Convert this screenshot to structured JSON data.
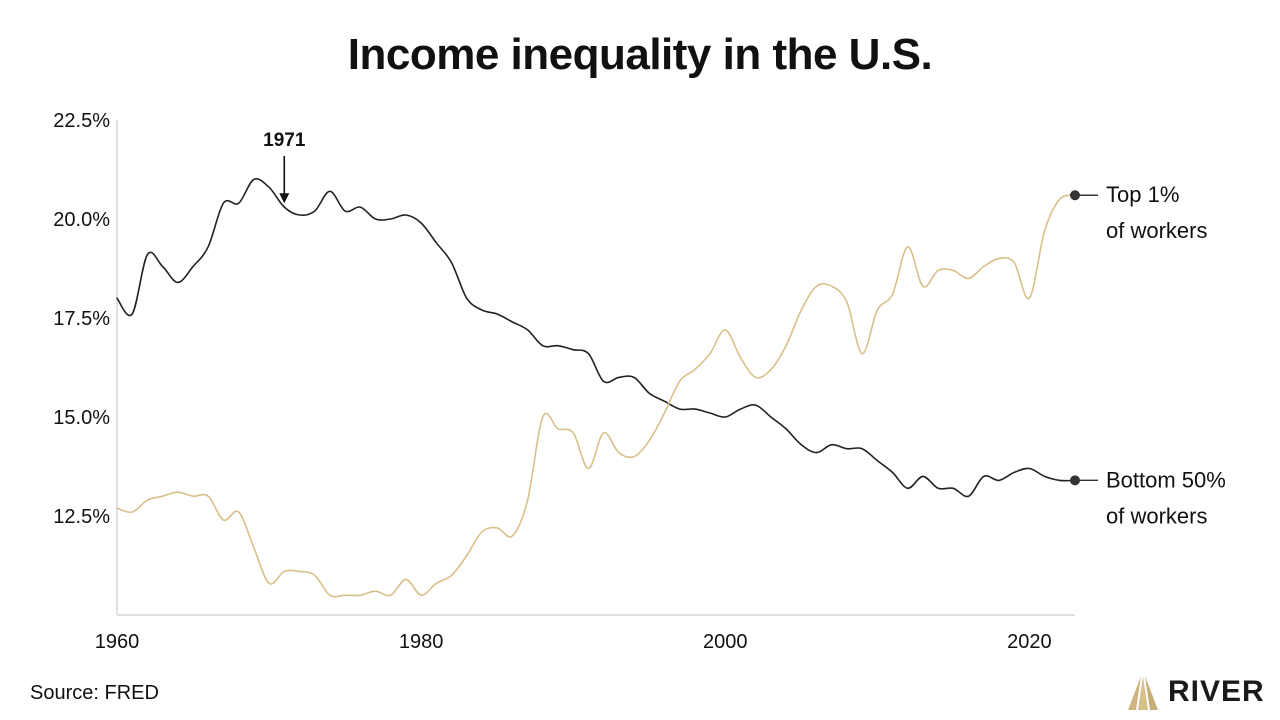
{
  "chart_data": {
    "type": "line",
    "title": "Income inequality in the U.S.",
    "xlim": [
      1960,
      2023
    ],
    "ylim": [
      10.0,
      22.5
    ],
    "x_ticks": [
      1960,
      1980,
      2000,
      2020
    ],
    "x_tick_labels": [
      "1960",
      "1980",
      "2000",
      "2020"
    ],
    "y_ticks": [
      12.5,
      15.0,
      17.5,
      20.0,
      22.5
    ],
    "y_tick_labels": [
      "12.5%",
      "15.0%",
      "17.5%",
      "20.0%",
      "22.5%"
    ],
    "grid": false,
    "series": [
      {
        "name": "Bottom 50% of workers",
        "label_lines": [
          "Bottom 50%",
          "of workers"
        ],
        "color": "#222222",
        "points": [
          [
            1960,
            18.0
          ],
          [
            1961,
            17.6
          ],
          [
            1962,
            19.1
          ],
          [
            1963,
            18.8
          ],
          [
            1964,
            18.4
          ],
          [
            1965,
            18.8
          ],
          [
            1966,
            19.3
          ],
          [
            1967,
            20.4
          ],
          [
            1968,
            20.4
          ],
          [
            1969,
            21.0
          ],
          [
            1970,
            20.8
          ],
          [
            1971,
            20.3
          ],
          [
            1972,
            20.1
          ],
          [
            1973,
            20.2
          ],
          [
            1974,
            20.7
          ],
          [
            1975,
            20.2
          ],
          [
            1976,
            20.3
          ],
          [
            1977,
            20.0
          ],
          [
            1978,
            20.0
          ],
          [
            1979,
            20.1
          ],
          [
            1980,
            19.9
          ],
          [
            1981,
            19.4
          ],
          [
            1982,
            18.9
          ],
          [
            1983,
            18.0
          ],
          [
            1984,
            17.7
          ],
          [
            1985,
            17.6
          ],
          [
            1986,
            17.4
          ],
          [
            1987,
            17.2
          ],
          [
            1988,
            16.8
          ],
          [
            1989,
            16.8
          ],
          [
            1990,
            16.7
          ],
          [
            1991,
            16.6
          ],
          [
            1992,
            15.9
          ],
          [
            1993,
            16.0
          ],
          [
            1994,
            16.0
          ],
          [
            1995,
            15.6
          ],
          [
            1996,
            15.4
          ],
          [
            1997,
            15.2
          ],
          [
            1998,
            15.2
          ],
          [
            1999,
            15.1
          ],
          [
            2000,
            15.0
          ],
          [
            2001,
            15.2
          ],
          [
            2002,
            15.3
          ],
          [
            2003,
            15.0
          ],
          [
            2004,
            14.7
          ],
          [
            2005,
            14.3
          ],
          [
            2006,
            14.1
          ],
          [
            2007,
            14.3
          ],
          [
            2008,
            14.2
          ],
          [
            2009,
            14.2
          ],
          [
            2010,
            13.9
          ],
          [
            2011,
            13.6
          ],
          [
            2012,
            13.2
          ],
          [
            2013,
            13.5
          ],
          [
            2014,
            13.2
          ],
          [
            2015,
            13.2
          ],
          [
            2016,
            13.0
          ],
          [
            2017,
            13.5
          ],
          [
            2018,
            13.4
          ],
          [
            2019,
            13.6
          ],
          [
            2020,
            13.7
          ],
          [
            2021,
            13.5
          ],
          [
            2022,
            13.4
          ],
          [
            2023,
            13.4
          ]
        ]
      },
      {
        "name": "Top 1% of workers",
        "label_lines": [
          "Top 1%",
          "of workers"
        ],
        "color": "#d8c08a",
        "points": [
          [
            1960,
            12.7
          ],
          [
            1961,
            12.6
          ],
          [
            1962,
            12.9
          ],
          [
            1963,
            13.0
          ],
          [
            1964,
            13.1
          ],
          [
            1965,
            13.0
          ],
          [
            1966,
            13.0
          ],
          [
            1967,
            12.4
          ],
          [
            1968,
            12.6
          ],
          [
            1969,
            11.7
          ],
          [
            1970,
            10.8
          ],
          [
            1971,
            11.1
          ],
          [
            1972,
            11.1
          ],
          [
            1973,
            11.0
          ],
          [
            1974,
            10.5
          ],
          [
            1975,
            10.5
          ],
          [
            1976,
            10.5
          ],
          [
            1977,
            10.6
          ],
          [
            1978,
            10.5
          ],
          [
            1979,
            10.9
          ],
          [
            1980,
            10.5
          ],
          [
            1981,
            10.8
          ],
          [
            1982,
            11.0
          ],
          [
            1983,
            11.5
          ],
          [
            1984,
            12.1
          ],
          [
            1985,
            12.2
          ],
          [
            1986,
            12.0
          ],
          [
            1987,
            12.9
          ],
          [
            1988,
            15.0
          ],
          [
            1989,
            14.7
          ],
          [
            1990,
            14.6
          ],
          [
            1991,
            13.7
          ],
          [
            1992,
            14.6
          ],
          [
            1993,
            14.1
          ],
          [
            1994,
            14.0
          ],
          [
            1995,
            14.4
          ],
          [
            1996,
            15.1
          ],
          [
            1997,
            15.9
          ],
          [
            1998,
            16.2
          ],
          [
            1999,
            16.6
          ],
          [
            2000,
            17.2
          ],
          [
            2001,
            16.5
          ],
          [
            2002,
            16.0
          ],
          [
            2003,
            16.2
          ],
          [
            2004,
            16.8
          ],
          [
            2005,
            17.7
          ],
          [
            2006,
            18.3
          ],
          [
            2007,
            18.3
          ],
          [
            2008,
            17.9
          ],
          [
            2009,
            16.6
          ],
          [
            2010,
            17.7
          ],
          [
            2011,
            18.1
          ],
          [
            2012,
            19.3
          ],
          [
            2013,
            18.3
          ],
          [
            2014,
            18.7
          ],
          [
            2015,
            18.7
          ],
          [
            2016,
            18.5
          ],
          [
            2017,
            18.8
          ],
          [
            2018,
            19.0
          ],
          [
            2019,
            18.9
          ],
          [
            2020,
            18.0
          ],
          [
            2021,
            19.7
          ],
          [
            2022,
            20.5
          ],
          [
            2023,
            20.6
          ]
        ]
      }
    ],
    "annotations": [
      {
        "text": "1971",
        "x": 1971,
        "y": 20.6
      }
    ]
  },
  "footer": {
    "source": "Source: FRED",
    "brand": "RIVER"
  },
  "colors": {
    "axis": "#cccccc",
    "text": "#111111",
    "accent": "#d8c08a"
  }
}
